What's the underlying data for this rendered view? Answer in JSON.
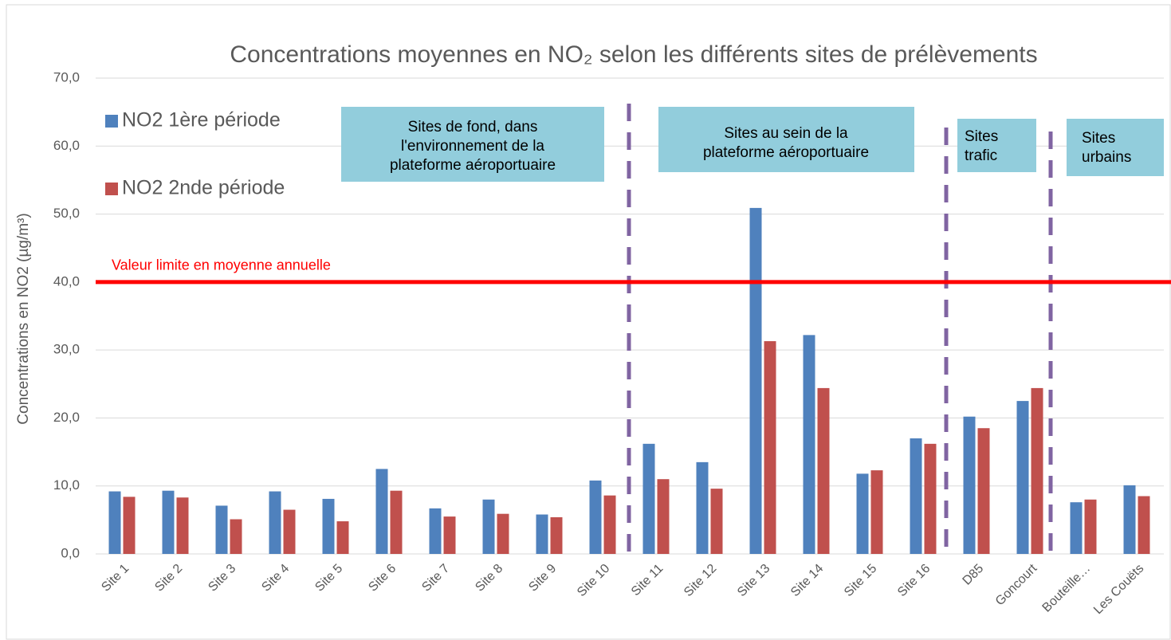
{
  "chart_data": {
    "type": "bar",
    "title": "Concentrations moyennes en NO₂ selon les différents sites de prélèvements",
    "y_label": "Concentrations en NO2 (µg/m³)",
    "categories": [
      "Site 1",
      "Site 2",
      "Site 3",
      "Site 4",
      "Site 5",
      "Site 6",
      "Site 7",
      "Site 8",
      "Site 9",
      "Site 10",
      "Site 11",
      "Site 12",
      "Site 13",
      "Site 14",
      "Site 15",
      "Site 16",
      "D85",
      "Goncourt",
      "Bouteille…",
      "Les Couëts"
    ],
    "series": [
      {
        "name": "NO2 1ère période",
        "color": "#4f81bd",
        "values": [
          9.2,
          9.3,
          7.1,
          9.2,
          8.1,
          12.5,
          6.7,
          8.0,
          5.8,
          10.8,
          16.2,
          13.5,
          50.9,
          32.2,
          11.8,
          17.0,
          20.2,
          22.5,
          7.6,
          10.1
        ]
      },
      {
        "name": "NO2 2nde période",
        "color": "#c0504d",
        "values": [
          8.4,
          8.3,
          5.1,
          6.5,
          4.8,
          9.3,
          5.5,
          5.9,
          5.4,
          8.6,
          11.0,
          9.6,
          31.3,
          24.4,
          12.3,
          16.2,
          18.5,
          24.4,
          8.0,
          8.5
        ]
      }
    ],
    "ylim": [
      0,
      70
    ],
    "yticks": [
      {
        "value": 0,
        "label": "0,0"
      },
      {
        "value": 10,
        "label": "10,0"
      },
      {
        "value": 20,
        "label": "20,0"
      },
      {
        "value": 30,
        "label": "30,0"
      },
      {
        "value": 40,
        "label": "40,0"
      },
      {
        "value": 50,
        "label": "50,0"
      },
      {
        "value": 60,
        "label": "60,0"
      },
      {
        "value": 70,
        "label": "70,0"
      }
    ],
    "grid": true,
    "legend": "upper left",
    "limit_line": {
      "value": 40,
      "label": "Valeur limite en moyenne annuelle",
      "color": "#ff0000"
    },
    "annotations": [
      {
        "lines": [
          "Sites de fond, dans",
          "l'environnement de la",
          "plateforme aéroportuaire"
        ]
      },
      {
        "lines": [
          "Sites au sein de la",
          "plateforme aéroportuaire"
        ]
      },
      {
        "lines": [
          "Sites",
          "trafic"
        ]
      },
      {
        "lines": [
          "Sites",
          "urbains"
        ]
      }
    ]
  }
}
